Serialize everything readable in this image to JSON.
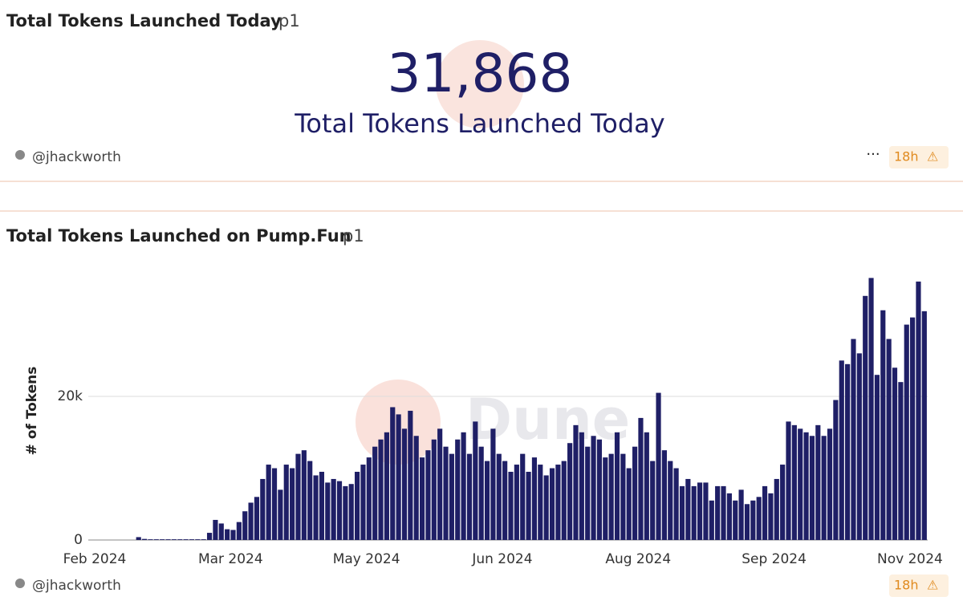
{
  "counter_widget": {
    "title": "Total Tokens Launched Today",
    "tag": "p1",
    "value": "31,868",
    "subtitle": "Total Tokens Launched Today",
    "author": "@jhackworth",
    "age": "18h"
  },
  "chart_widget": {
    "tag": "p1",
    "author": "@jhackworth",
    "age": "18h",
    "watermark": "Dune"
  },
  "chart_data": {
    "type": "bar",
    "title": "Total Tokens Launched on Pump.Fun",
    "ylabel": "# of Tokens",
    "color": "#1f1f66",
    "values": [
      0,
      0,
      0,
      0,
      0,
      0,
      0,
      400,
      150,
      100,
      100,
      100,
      100,
      100,
      100,
      100,
      100,
      100,
      100,
      1000,
      2800,
      2300,
      1500,
      1400,
      2500,
      4000,
      5200,
      6000,
      8500,
      10500,
      10000,
      7000,
      10500,
      10000,
      12000,
      12500,
      11000,
      9000,
      9500,
      8000,
      8500,
      8200,
      7500,
      7800,
      9500,
      10500,
      11500,
      13000,
      14000,
      15000,
      18500,
      17500,
      15500,
      18000,
      14500,
      11500,
      12500,
      14000,
      15500,
      13000,
      12000,
      14000,
      15000,
      12000,
      16500,
      13000,
      11000,
      15500,
      12000,
      11000,
      9500,
      10500,
      12000,
      9500,
      11500,
      10500,
      9000,
      10000,
      10500,
      11000,
      13500,
      16000,
      15000,
      13000,
      14500,
      14000,
      11500,
      12000,
      15000,
      12000,
      10000,
      13000,
      17000,
      15000,
      11000,
      20500,
      12500,
      11000,
      10000,
      7500,
      8500,
      7500,
      8000,
      8000,
      5500,
      7500,
      7500,
      6500,
      5500,
      7000,
      5000,
      5500,
      6000,
      7500,
      6500,
      8500,
      10500,
      16500,
      16000,
      15500,
      15000,
      14500,
      16000,
      14500,
      15500,
      19500,
      25000,
      24500,
      28000,
      26000,
      34000,
      36500,
      23000,
      32000,
      28000,
      24000,
      22000,
      30000,
      31000,
      36000,
      31868
    ],
    "xlim": [
      0,
      141
    ],
    "xticks": [
      {
        "value": 0,
        "label": "Feb 2024"
      },
      {
        "value": 23,
        "label": "Mar 2024"
      },
      {
        "value": 46,
        "label": "May 2024"
      },
      {
        "value": 69,
        "label": "Jun 2024"
      },
      {
        "value": 92,
        "label": "Aug 2024"
      },
      {
        "value": 115,
        "label": "Sep 2024"
      },
      {
        "value": 138,
        "label": "Nov 2024"
      }
    ],
    "ylim": [
      0,
      38000
    ],
    "yticks": [
      0,
      {
        "value": 20000,
        "label": "20k"
      }
    ],
    "grid": true
  }
}
